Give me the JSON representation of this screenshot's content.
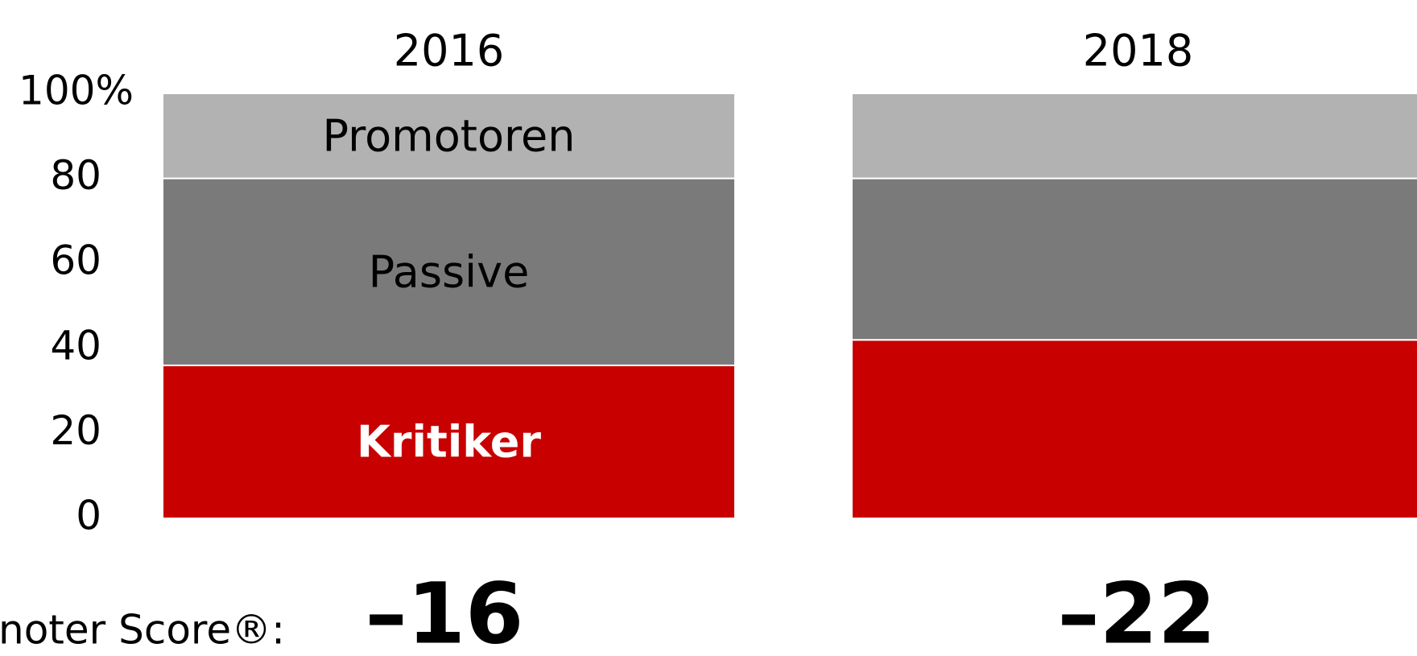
{
  "chart_data": {
    "type": "stacked_bar",
    "categories": [
      "2016",
      "2018"
    ],
    "series": [
      {
        "name": "Kritiker",
        "color": "#c80000",
        "values": [
          36,
          42
        ]
      },
      {
        "name": "Passive",
        "color": "#7a7a7a",
        "values": [
          44,
          38
        ]
      },
      {
        "name": "Promotoren",
        "color": "#b2b2b2",
        "values": [
          20,
          20
        ]
      }
    ],
    "ylim": [
      0,
      100
    ],
    "yticks": [
      0,
      20,
      40,
      60,
      80,
      {
        "value": 100,
        "label": "100%"
      }
    ],
    "score_title": "noter Score®:",
    "scores": [
      -16,
      -22
    ],
    "score_labels": [
      "–16",
      "–22"
    ]
  }
}
